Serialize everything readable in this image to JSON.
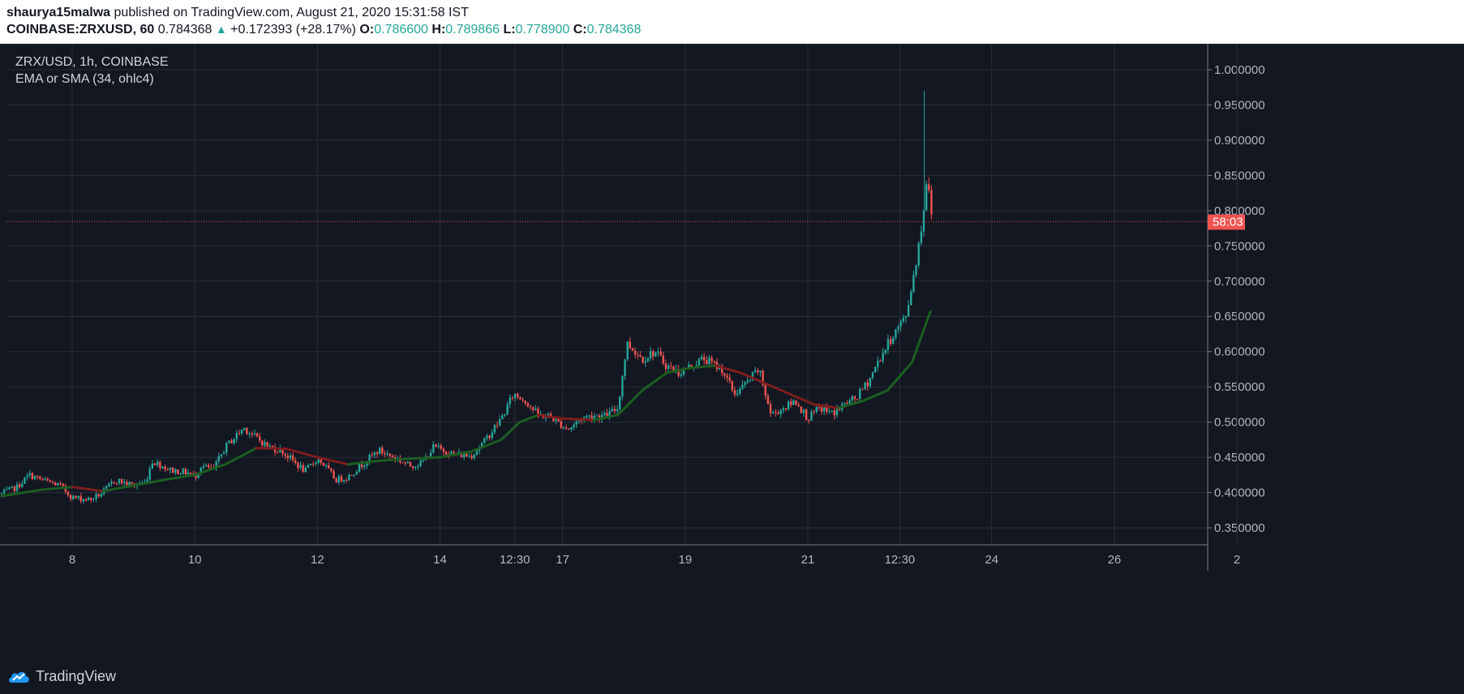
{
  "header": {
    "author": "shaurya15malwa",
    "published_text": " published on TradingView.com, August 21, 2020 15:31:58 IST",
    "symbol": "COINBASE:ZRXUSD, 60",
    "last": " 0.784368 ",
    "change_arrow": "▲",
    "change": " +0.172393 (+28.17%) ",
    "o_label": "O:",
    "o": "0.786600",
    "h_label": " H:",
    "h": "0.789866",
    "l_label": " L:",
    "l": "0.778900",
    "c_label": " C:",
    "c": "0.784368"
  },
  "legend": {
    "title": "ZRX/USD, 1h, COINBASE",
    "indicator": "EMA or SMA (34, ohlc4)"
  },
  "footer": {
    "brand": "TradingView"
  },
  "colors": {
    "up": "#26a69a",
    "down": "#ef5350",
    "ma_up": "#1b5e20",
    "ma_down": "#7f1d1d",
    "bg": "#131722",
    "grid": "#2a2e39"
  },
  "chart_data": {
    "type": "candlestick",
    "symbol": "ZRX/USD",
    "interval": "1h",
    "exchange": "COINBASE",
    "y_ticks": [
      "1.000000",
      "0.950000",
      "0.900000",
      "0.850000",
      "0.800000",
      "0.750000",
      "0.700000",
      "0.650000",
      "0.600000",
      "0.550000",
      "0.500000",
      "0.450000",
      "0.400000",
      "0.350000"
    ],
    "ylim": [
      0.315,
      1.03
    ],
    "x_ticks": [
      {
        "label": "8",
        "t": 2
      },
      {
        "label": "10",
        "t": 4
      },
      {
        "label": "12",
        "t": 6
      },
      {
        "label": "14",
        "t": 8
      },
      {
        "label": "12:30",
        "t": 9.22
      },
      {
        "label": "17",
        "t": 10
      },
      {
        "label": "19",
        "t": 12
      },
      {
        "label": "21",
        "t": 14
      },
      {
        "label": "12:30",
        "t": 15.5
      },
      {
        "label": "24",
        "t": 17
      },
      {
        "label": "26",
        "t": 19
      },
      {
        "label": "2",
        "t": 21
      }
    ],
    "x_range_days": [
      0.85,
      21.0
    ],
    "current_price": 0.784368,
    "price_label": "58:03",
    "price_path": [
      [
        0.85,
        0.398
      ],
      [
        1.1,
        0.408
      ],
      [
        1.3,
        0.425
      ],
      [
        1.5,
        0.418
      ],
      [
        1.8,
        0.41
      ],
      [
        2.0,
        0.393
      ],
      [
        2.3,
        0.39
      ],
      [
        2.5,
        0.4
      ],
      [
        2.7,
        0.418
      ],
      [
        3.0,
        0.41
      ],
      [
        3.2,
        0.415
      ],
      [
        3.3,
        0.445
      ],
      [
        3.6,
        0.432
      ],
      [
        3.9,
        0.428
      ],
      [
        4.0,
        0.422
      ],
      [
        4.1,
        0.438
      ],
      [
        4.3,
        0.432
      ],
      [
        4.5,
        0.465
      ],
      [
        4.8,
        0.492
      ],
      [
        5.0,
        0.478
      ],
      [
        5.2,
        0.465
      ],
      [
        5.4,
        0.46
      ],
      [
        5.6,
        0.445
      ],
      [
        5.8,
        0.43
      ],
      [
        6.0,
        0.448
      ],
      [
        6.1,
        0.44
      ],
      [
        6.3,
        0.418
      ],
      [
        6.5,
        0.422
      ],
      [
        6.7,
        0.438
      ],
      [
        7.0,
        0.46
      ],
      [
        7.3,
        0.448
      ],
      [
        7.5,
        0.438
      ],
      [
        7.7,
        0.442
      ],
      [
        7.9,
        0.465
      ],
      [
        8.2,
        0.455
      ],
      [
        8.5,
        0.452
      ],
      [
        8.7,
        0.47
      ],
      [
        9.0,
        0.505
      ],
      [
        9.2,
        0.54
      ],
      [
        9.4,
        0.53
      ],
      [
        9.6,
        0.51
      ],
      [
        9.8,
        0.508
      ],
      [
        10.0,
        0.495
      ],
      [
        10.1,
        0.49
      ],
      [
        10.3,
        0.505
      ],
      [
        10.5,
        0.51
      ],
      [
        10.7,
        0.508
      ],
      [
        10.9,
        0.52
      ],
      [
        11.05,
        0.612
      ],
      [
        11.3,
        0.59
      ],
      [
        11.5,
        0.6
      ],
      [
        11.7,
        0.58
      ],
      [
        11.9,
        0.57
      ],
      [
        12.1,
        0.58
      ],
      [
        12.3,
        0.59
      ],
      [
        12.6,
        0.575
      ],
      [
        12.8,
        0.54
      ],
      [
        13.0,
        0.555
      ],
      [
        13.2,
        0.575
      ],
      [
        13.4,
        0.51
      ],
      [
        13.6,
        0.52
      ],
      [
        13.8,
        0.53
      ],
      [
        14.0,
        0.505
      ],
      [
        14.2,
        0.52
      ],
      [
        14.4,
        0.512
      ],
      [
        14.6,
        0.525
      ],
      [
        14.8,
        0.535
      ],
      [
        15.0,
        0.56
      ],
      [
        15.2,
        0.595
      ],
      [
        15.4,
        0.625
      ],
      [
        15.6,
        0.65
      ],
      [
        15.75,
        0.72
      ],
      [
        15.85,
        0.775
      ],
      [
        15.95,
        0.85
      ],
      [
        16.03,
        0.784
      ]
    ],
    "spike_high": 0.97,
    "ma_path": [
      [
        0.85,
        0.395
      ],
      [
        1.5,
        0.404
      ],
      [
        2.0,
        0.408
      ],
      [
        2.5,
        0.402
      ],
      [
        3.0,
        0.41
      ],
      [
        3.5,
        0.418
      ],
      [
        4.0,
        0.425
      ],
      [
        4.5,
        0.44
      ],
      [
        5.0,
        0.463
      ],
      [
        5.5,
        0.462
      ],
      [
        6.0,
        0.45
      ],
      [
        6.5,
        0.44
      ],
      [
        7.0,
        0.445
      ],
      [
        7.5,
        0.448
      ],
      [
        8.0,
        0.45
      ],
      [
        8.5,
        0.458
      ],
      [
        9.0,
        0.475
      ],
      [
        9.3,
        0.5
      ],
      [
        9.6,
        0.51
      ],
      [
        10.0,
        0.505
      ],
      [
        10.5,
        0.503
      ],
      [
        10.9,
        0.51
      ],
      [
        11.3,
        0.545
      ],
      [
        11.7,
        0.57
      ],
      [
        12.1,
        0.577
      ],
      [
        12.5,
        0.58
      ],
      [
        12.9,
        0.57
      ],
      [
        13.3,
        0.555
      ],
      [
        13.7,
        0.54
      ],
      [
        14.1,
        0.525
      ],
      [
        14.5,
        0.52
      ],
      [
        14.9,
        0.53
      ],
      [
        15.3,
        0.545
      ],
      [
        15.7,
        0.585
      ],
      [
        16.0,
        0.657
      ]
    ]
  }
}
